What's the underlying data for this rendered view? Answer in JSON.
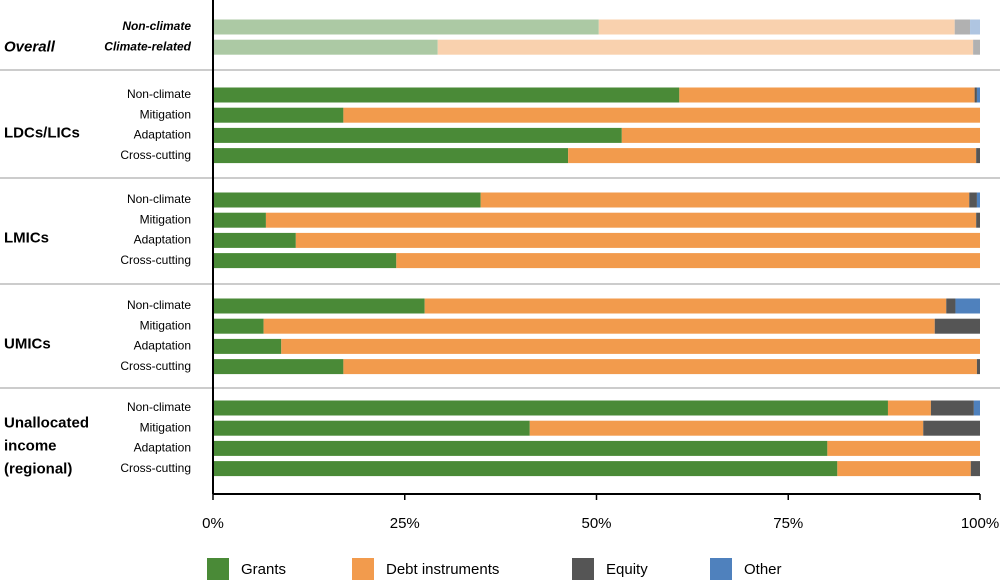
{
  "chart_data": {
    "type": "stacked_barh",
    "groups": [
      {
        "name": "Overall",
        "categories": [
          "Non-climate",
          "Climate-related"
        ]
      },
      {
        "name": "LDCs/LICs",
        "categories": [
          "Non-climate",
          "Mitigation",
          "Adaptation",
          "Cross-cutting"
        ]
      },
      {
        "name": "LMICs",
        "categories": [
          "Non-climate",
          "Mitigation",
          "Adaptation",
          "Cross-cutting"
        ]
      },
      {
        "name": "UMICs",
        "categories": [
          "Non-climate",
          "Mitigation",
          "Adaptation",
          "Cross-cutting"
        ]
      },
      {
        "name": "Unallocated income (regional)",
        "categories": [
          "Non-climate",
          "Mitigation",
          "Adaptation",
          "Cross-cutting"
        ]
      }
    ],
    "series": [
      {
        "name": "Grants",
        "color": "#4a8a37",
        "values": [
          50.3,
          29.3,
          60.8,
          17.0,
          53.3,
          46.3,
          34.9,
          6.9,
          10.8,
          23.9,
          27.6,
          6.6,
          8.9,
          17.0,
          88.0,
          41.3,
          80.1,
          81.4
        ]
      },
      {
        "name": "Debt instruments",
        "color": "#f29b4d",
        "values": [
          46.4,
          69.8,
          38.5,
          83.0,
          46.7,
          53.2,
          63.7,
          92.6,
          89.2,
          76.1,
          68.0,
          87.5,
          91.1,
          82.6,
          5.6,
          51.3,
          19.9,
          17.4
        ]
      },
      {
        "name": "Equity",
        "color": "#555555",
        "values": [
          2.0,
          0.9,
          0.3,
          0,
          0,
          0.5,
          1.0,
          0.5,
          0,
          0,
          1.2,
          5.9,
          0,
          0.4,
          5.6,
          7.4,
          0,
          1.2
        ]
      },
      {
        "name": "Other",
        "color": "#4f81bd",
        "values": [
          1.3,
          0,
          0.4,
          0,
          0,
          0,
          0.4,
          0,
          0,
          0,
          3.2,
          0,
          0,
          0,
          0.8,
          0,
          0,
          0
        ]
      }
    ],
    "xlim": [
      0,
      100
    ],
    "xticks": [
      {
        "value": 0,
        "label": "0%"
      },
      {
        "value": 25,
        "label": "25%"
      },
      {
        "value": 50,
        "label": "50%"
      },
      {
        "value": 75,
        "label": "75%"
      },
      {
        "value": 100,
        "label": "100%"
      }
    ]
  }
}
